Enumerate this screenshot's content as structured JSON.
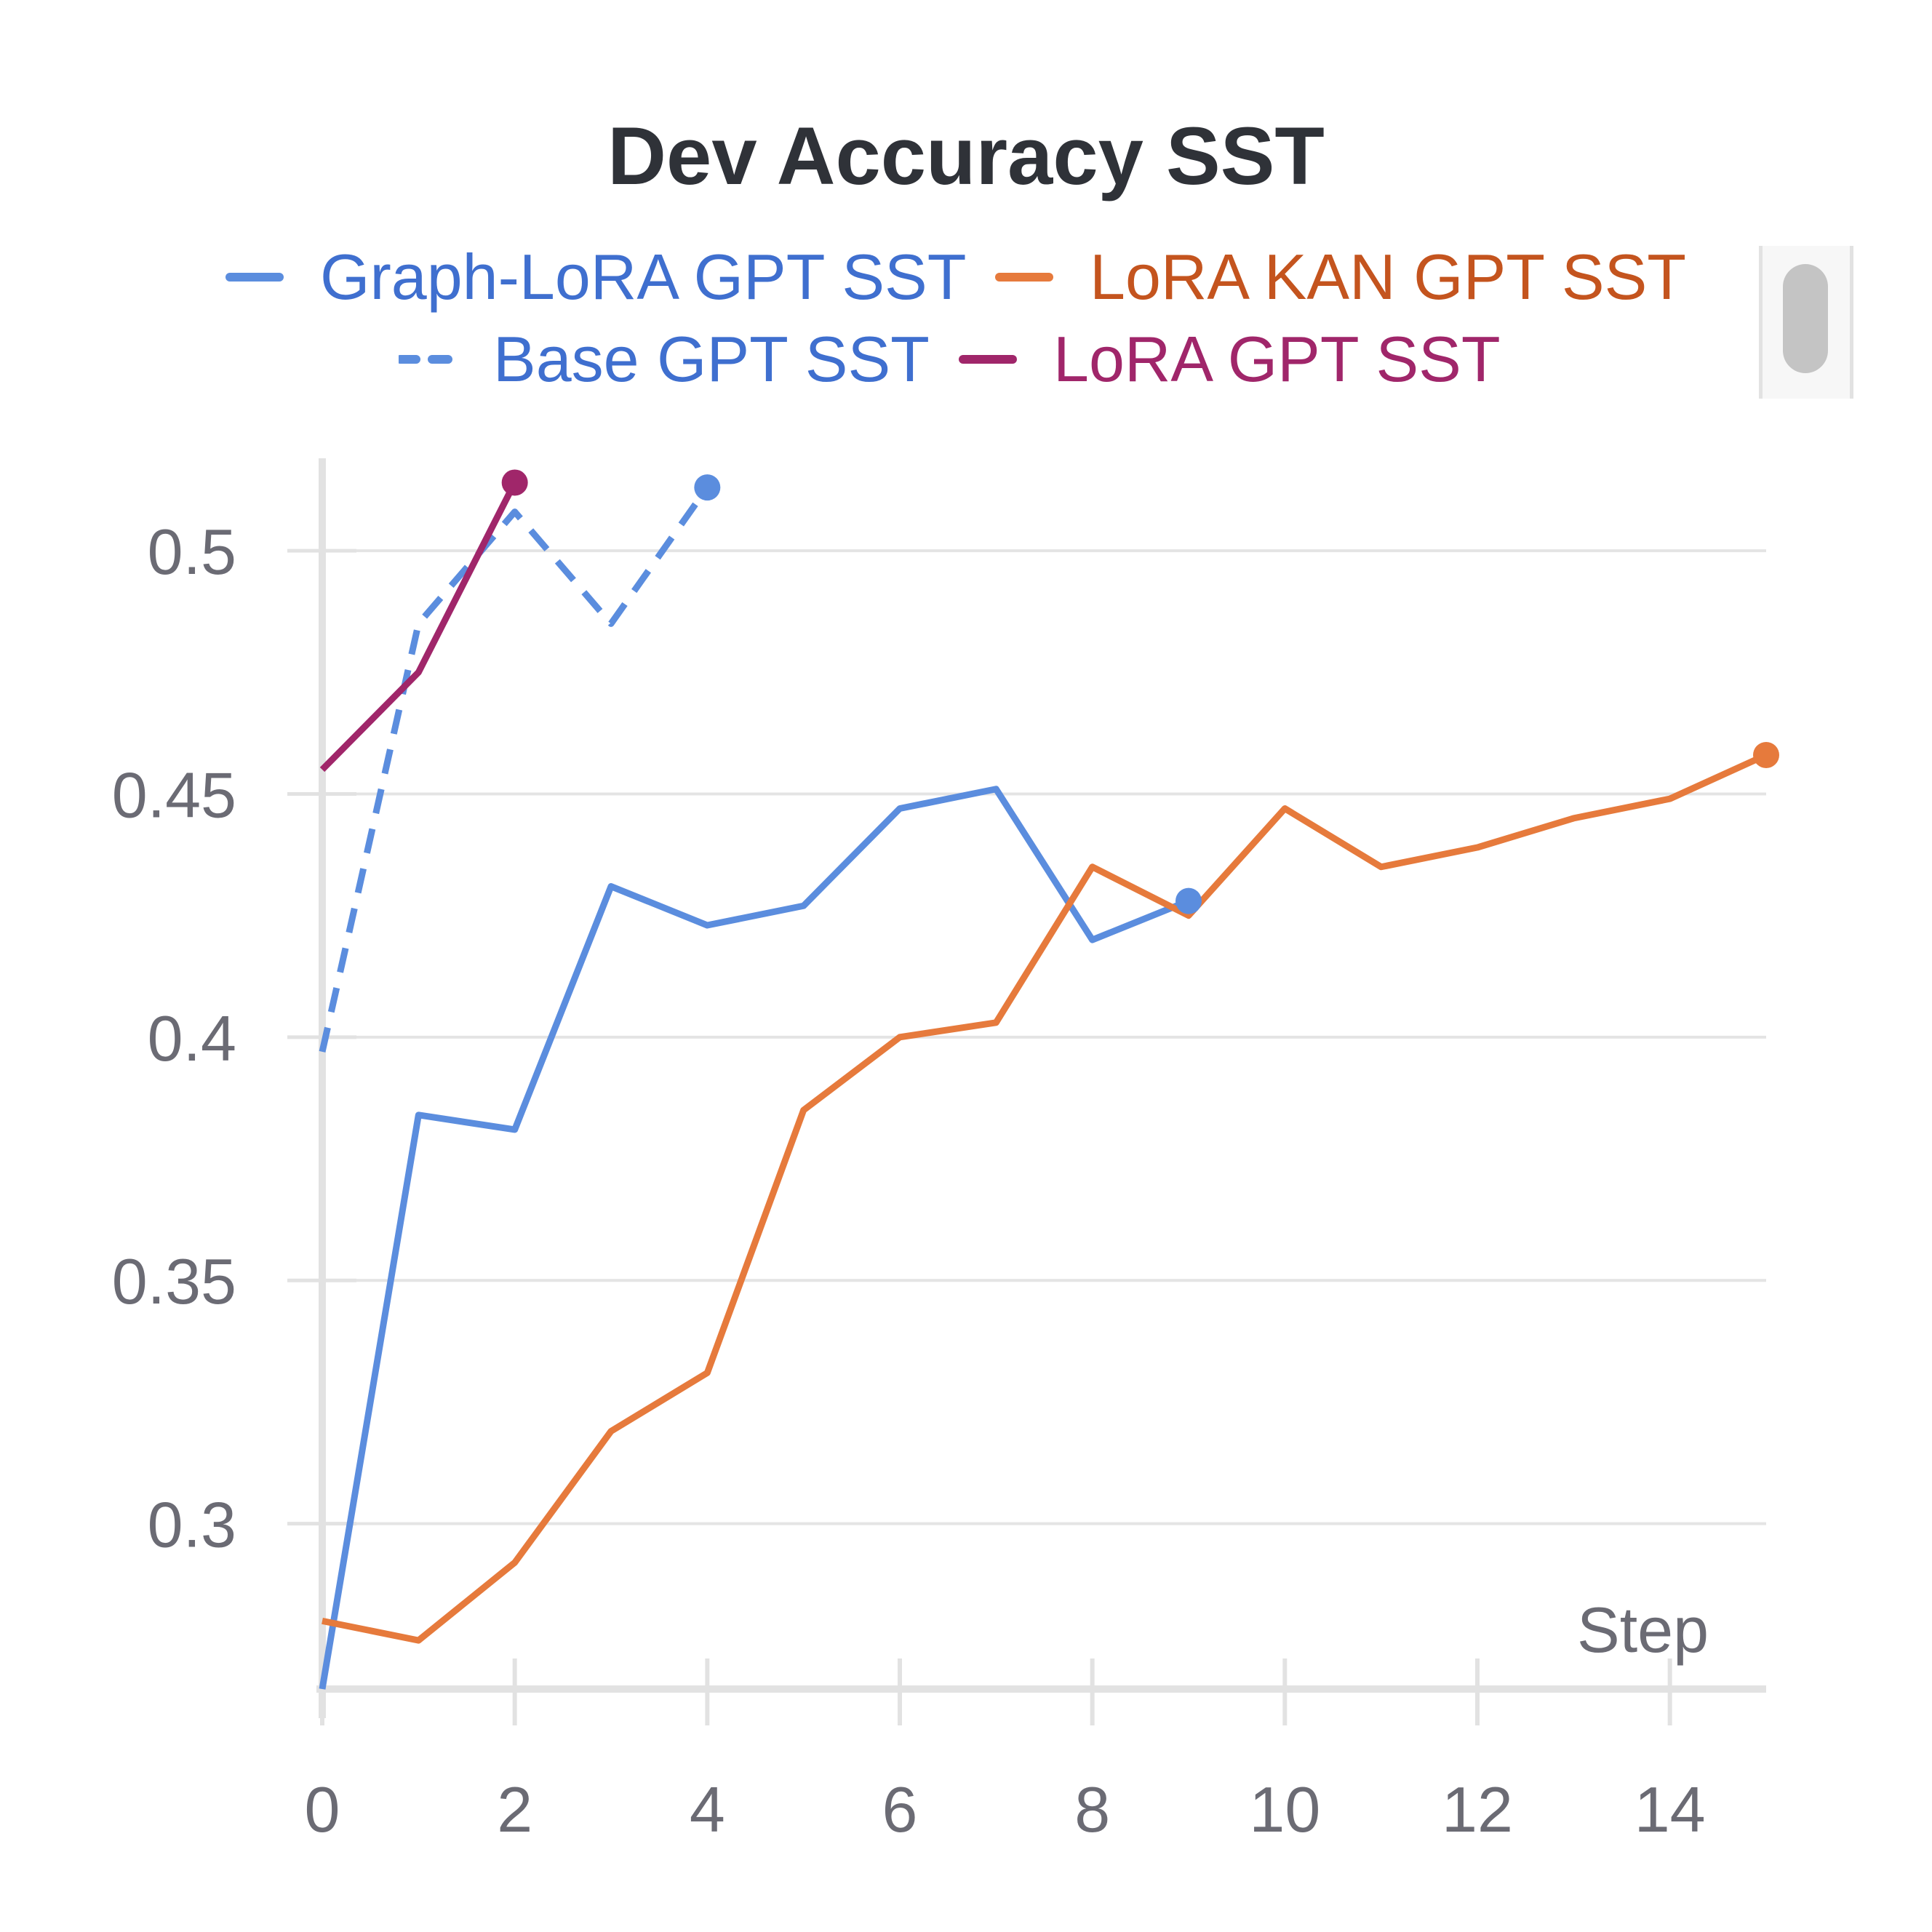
{
  "chart_data": {
    "type": "line",
    "title": "Dev Accuracy SST",
    "xlabel": "Step",
    "ylabel": "",
    "xlim": [
      0,
      15
    ],
    "ylim": [
      0.266,
      0.519
    ],
    "xticks": [
      "0",
      "2",
      "4",
      "6",
      "8",
      "10",
      "12",
      "14"
    ],
    "yticks": [
      "0.3",
      "0.35",
      "0.4",
      "0.45",
      "0.5"
    ],
    "grid": true,
    "legend_position": "top",
    "series": [
      {
        "name": "Graph-LoRA GPT SST",
        "color": "#5b8dde",
        "style": "solid",
        "x": [
          0,
          1,
          2,
          3,
          4,
          5,
          6,
          7,
          8,
          9
        ],
        "y": [
          0.266,
          0.384,
          0.381,
          0.431,
          0.423,
          0.427,
          0.447,
          0.451,
          0.42,
          0.428
        ]
      },
      {
        "name": "LoRA KAN GPT SST",
        "color": "#e67a3c",
        "style": "solid",
        "x": [
          0,
          1,
          2,
          3,
          4,
          5,
          6,
          7,
          8,
          9,
          10,
          11,
          12,
          13,
          14,
          15
        ],
        "y": [
          0.28,
          0.276,
          0.292,
          0.319,
          0.331,
          0.385,
          0.4,
          0.403,
          0.435,
          0.425,
          0.447,
          0.435,
          0.439,
          0.445,
          0.449,
          0.458
        ]
      },
      {
        "name": "Base GPT SST",
        "color": "#5b8dde",
        "style": "dashed",
        "x": [
          0,
          1,
          2,
          3,
          4
        ],
        "y": [
          0.397,
          0.485,
          0.508,
          0.485,
          0.513
        ]
      },
      {
        "name": "LoRA GPT SST",
        "color": "#a0266a",
        "style": "solid",
        "x": [
          0,
          1,
          2
        ],
        "y": [
          0.455,
          0.475,
          0.514
        ]
      }
    ]
  },
  "legend_text_colors": {
    "Graph-LoRA GPT SST": "#3f6fcf",
    "LoRA KAN GPT SST": "#c4541e",
    "Base GPT SST": "#3f6fcf",
    "LoRA GPT SST": "#a0266a"
  }
}
